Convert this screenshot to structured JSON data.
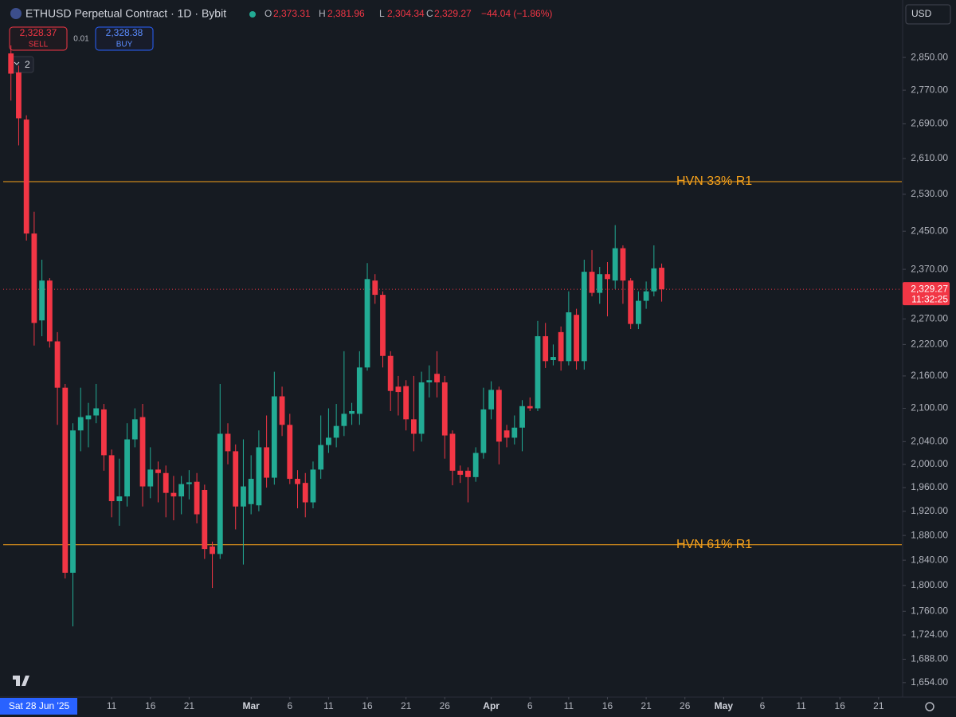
{
  "header": {
    "symbol": "ETHUSD Perpetual Contract · 1D · Bybit",
    "ohlc": [
      {
        "key": "O",
        "value": "2,373.31"
      },
      {
        "key": "H",
        "value": "2,381.96"
      },
      {
        "key": "L",
        "value": "2,304.34"
      },
      {
        "key": "C",
        "value": "2,329.27"
      }
    ],
    "change": "−44.04 (−1.86%)"
  },
  "trade": {
    "sell_price": "2,328.37",
    "sell_label": "SELL",
    "quantity": "0.01",
    "buy_price": "2,328.38",
    "buy_label": "BUY"
  },
  "indicators_count": "2",
  "currency": "USD",
  "crosshair_date": "Sat 28 Jun '25",
  "chart_data": {
    "type": "candlestick",
    "x": [
      "2025-01-29",
      "2025-01-30",
      "2025-01-31",
      "2025-02-01",
      "2025-02-02",
      "2025-02-03",
      "2025-02-04",
      "2025-02-05",
      "2025-02-06",
      "2025-02-07",
      "2025-02-08",
      "2025-02-09",
      "2025-02-10",
      "2025-02-11",
      "2025-02-12",
      "2025-02-13",
      "2025-02-14",
      "2025-02-15",
      "2025-02-16",
      "2025-02-17",
      "2025-02-18",
      "2025-02-19",
      "2025-02-20",
      "2025-02-21",
      "2025-02-22",
      "2025-02-23",
      "2025-02-24",
      "2025-02-25",
      "2025-02-26",
      "2025-02-27",
      "2025-02-28",
      "2025-03-01",
      "2025-03-02",
      "2025-03-03",
      "2025-03-04",
      "2025-03-05",
      "2025-03-06",
      "2025-03-07",
      "2025-03-08",
      "2025-03-09",
      "2025-03-10",
      "2025-03-11",
      "2025-03-12",
      "2025-03-13",
      "2025-03-14",
      "2025-03-15",
      "2025-03-16",
      "2025-03-17",
      "2025-03-18",
      "2025-03-19",
      "2025-03-20",
      "2025-03-21",
      "2025-03-22",
      "2025-03-23",
      "2025-03-24",
      "2025-03-25",
      "2025-03-26",
      "2025-03-27",
      "2025-03-28",
      "2025-03-29",
      "2025-03-30",
      "2025-03-31",
      "2025-04-01",
      "2025-04-02",
      "2025-04-03",
      "2025-04-04",
      "2025-04-05",
      "2025-04-06",
      "2025-04-07",
      "2025-04-08",
      "2025-04-09",
      "2025-04-10",
      "2025-04-11",
      "2025-04-12",
      "2025-04-13",
      "2025-04-14",
      "2025-04-15",
      "2025-04-16",
      "2025-04-17",
      "2025-04-18",
      "2025-04-19",
      "2025-04-20",
      "2025-04-21",
      "2025-04-22",
      "2025-04-23"
    ],
    "open": [
      2860,
      2813,
      2700,
      2445,
      2267,
      2347,
      2226,
      2138,
      1820,
      2060,
      2080,
      2087,
      2098,
      2016,
      1937,
      1945,
      2044,
      2084,
      1962,
      1991,
      1985,
      1951,
      1945,
      1966,
      1970,
      1956,
      1862,
      1850,
      2054,
      2023,
      1928,
      1932,
      1930,
      2030,
      1977,
      2122,
      2070,
      1975,
      1968,
      1935,
      1991,
      2034,
      2047,
      2068,
      2090,
      2090,
      2176,
      2347,
      2318,
      2198,
      2140,
      2141,
      2080,
      2054,
      2148,
      2164,
      2148,
      2054,
      1989,
      1989,
      1978,
      2020,
      2098,
      2134,
      2060,
      2047,
      2065,
      2104,
      2100,
      2236,
      2190,
      2244,
      2188,
      2278,
      2188,
      2365,
      2322,
      2360,
      2347,
      2414,
      2347,
      2260,
      2306,
      2325,
      2373.31
    ],
    "high": [
      2880,
      2830,
      2710,
      2492,
      2390,
      2352,
      2244,
      2145,
      2073,
      2138,
      2110,
      2145,
      2108,
      2026,
      2010,
      2073,
      2100,
      2108,
      2030,
      2005,
      1998,
      1980,
      1980,
      1990,
      1985,
      1965,
      1870,
      2145,
      2073,
      2035,
      2044,
      2016,
      2060,
      2087,
      2168,
      2140,
      2090,
      1990,
      1985,
      2005,
      2087,
      2100,
      2108,
      2207,
      2110,
      2207,
      2383,
      2360,
      2325,
      2207,
      2160,
      2152,
      2160,
      2168,
      2180,
      2207,
      2160,
      2060,
      1998,
      1995,
      2030,
      2138,
      2150,
      2140,
      2070,
      2087,
      2115,
      2120,
      2266,
      2262,
      2220,
      2255,
      2325,
      2290,
      2390,
      2410,
      2375,
      2385,
      2463,
      2420,
      2352,
      2325,
      2345,
      2420,
      2381.96
    ],
    "low": [
      2745,
      2640,
      2430,
      2218,
      2236,
      2214,
      2070,
      1811,
      1737,
      2023,
      2030,
      2073,
      1989,
      1910,
      1896,
      1928,
      2030,
      1928,
      1942,
      1935,
      1910,
      1905,
      1915,
      1940,
      1900,
      1842,
      1796,
      1842,
      2000,
      1890,
      1833,
      1915,
      1920,
      1960,
      1965,
      2050,
      1966,
      1925,
      1910,
      1925,
      1975,
      2020,
      2030,
      2050,
      2070,
      2070,
      2170,
      2300,
      2176,
      2095,
      2087,
      2060,
      2023,
      2040,
      2120,
      2120,
      2010,
      1964,
      1968,
      1935,
      1970,
      2010,
      2080,
      2000,
      2030,
      2035,
      2023,
      2095,
      2095,
      2175,
      2180,
      2170,
      2180,
      2172,
      2172,
      2315,
      2300,
      2275,
      2330,
      2300,
      2250,
      2250,
      2290,
      2315,
      2304.34
    ],
    "close": [
      2810,
      2703,
      2445,
      2262,
      2347,
      2226,
      2138,
      1820,
      2060,
      2084,
      2087,
      2100,
      2016,
      1937,
      1945,
      2044,
      2080,
      1962,
      1991,
      1985,
      1951,
      1945,
      1966,
      1969,
      1915,
      1858,
      1850,
      2054,
      2023,
      1928,
      1962,
      1975,
      2030,
      1977,
      2122,
      2070,
      1975,
      1966,
      1935,
      1991,
      2034,
      2047,
      2068,
      2090,
      2095,
      2176,
      2350,
      2318,
      2198,
      2132,
      2130,
      2080,
      2054,
      2148,
      2152,
      2148,
      2051,
      1989,
      1982,
      1978,
      2020,
      2098,
      2134,
      2040,
      2047,
      2065,
      2104,
      2100,
      2236,
      2188,
      2196,
      2188,
      2283,
      2188,
      2365,
      2322,
      2360,
      2350,
      2414,
      2347,
      2260,
      2306,
      2325,
      2372,
      2329.27
    ],
    "up_color": "#22ab94",
    "down_color": "#f23645",
    "log_scale": true,
    "ylim": [
      1639,
      2874
    ],
    "yticks": [
      {
        "value": 1654,
        "label": "1,654.00"
      },
      {
        "value": 1688,
        "label": "1,688.00"
      },
      {
        "value": 1724,
        "label": "1,724.00"
      },
      {
        "value": 1760,
        "label": "1,760.00"
      },
      {
        "value": 1800,
        "label": "1,800.00"
      },
      {
        "value": 1840,
        "label": "1,840.00"
      },
      {
        "value": 1880,
        "label": "1,880.00"
      },
      {
        "value": 1920,
        "label": "1,920.00"
      },
      {
        "value": 1960,
        "label": "1,960.00"
      },
      {
        "value": 2000,
        "label": "2,000.00"
      },
      {
        "value": 2040,
        "label": "2,040.00"
      },
      {
        "value": 2100,
        "label": "2,100.00"
      },
      {
        "value": 2160,
        "label": "2,160.00"
      },
      {
        "value": 2220,
        "label": "2,220.00"
      },
      {
        "value": 2270,
        "label": "2,270.00"
      },
      {
        "value": 2370,
        "label": "2,370.00"
      },
      {
        "value": 2450,
        "label": "2,450.00"
      },
      {
        "value": 2530,
        "label": "2,530.00"
      },
      {
        "value": 2610,
        "label": "2,610.00"
      },
      {
        "value": 2690,
        "label": "2,690.00"
      },
      {
        "value": 2770,
        "label": "2,770.00"
      },
      {
        "value": 2850,
        "label": "2,850.00"
      }
    ],
    "xlim": [
      "2025-01-28",
      "2025-05-24"
    ],
    "xticks": [
      {
        "value": "2025-02-11",
        "label": "11"
      },
      {
        "value": "2025-02-16",
        "label": "16"
      },
      {
        "value": "2025-02-21",
        "label": "21"
      },
      {
        "value": "2025-03-01",
        "label": "Mar"
      },
      {
        "value": "2025-03-06",
        "label": "6"
      },
      {
        "value": "2025-03-11",
        "label": "11"
      },
      {
        "value": "2025-03-16",
        "label": "16"
      },
      {
        "value": "2025-03-21",
        "label": "21"
      },
      {
        "value": "2025-03-26",
        "label": "26"
      },
      {
        "value": "2025-04-01",
        "label": "Apr"
      },
      {
        "value": "2025-04-06",
        "label": "6"
      },
      {
        "value": "2025-04-11",
        "label": "11"
      },
      {
        "value": "2025-04-16",
        "label": "16"
      },
      {
        "value": "2025-04-21",
        "label": "21"
      },
      {
        "value": "2025-04-26",
        "label": "26"
      },
      {
        "value": "2025-05-01",
        "label": "May"
      },
      {
        "value": "2025-05-06",
        "label": "6"
      },
      {
        "value": "2025-05-11",
        "label": "11"
      },
      {
        "value": "2025-05-16",
        "label": "16"
      },
      {
        "value": "2025-05-21",
        "label": "21"
      }
    ],
    "lines": [
      {
        "label": "HVN 33% R1",
        "value": 2558,
        "color": "#f7a21b"
      },
      {
        "label": "HVN 61% R1",
        "value": 1865,
        "color": "#f7a21b"
      }
    ],
    "last_price": {
      "value": 2329.27,
      "label": "2,329.27",
      "countdown": "11:32:25",
      "color": "#f23645"
    }
  }
}
